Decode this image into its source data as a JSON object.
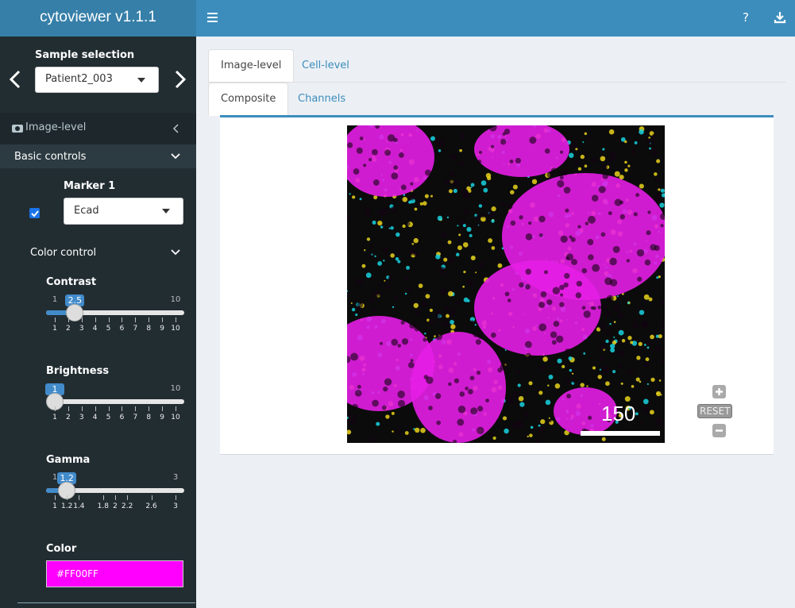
{
  "header": {
    "title": "cytoviewer v1.1.1",
    "help": "?"
  },
  "sidebar": {
    "sample_label": "Sample selection",
    "sample": "Patient2_003",
    "section": "Image-level",
    "basic_controls": "Basic controls",
    "marker_label": "Marker 1",
    "marker": "Ecad",
    "color_control": "Color control",
    "sliders": [
      {
        "label": "Contrast",
        "min": 1,
        "max": 10,
        "value": 2.5,
        "ticks": [
          1,
          2,
          3,
          4,
          5,
          6,
          7,
          8,
          9,
          10
        ]
      },
      {
        "label": "Brightness",
        "min": 1,
        "max": 10,
        "value": 1,
        "ticks": [
          1,
          2,
          3,
          4,
          5,
          6,
          7,
          8,
          9,
          10
        ]
      },
      {
        "label": "Gamma",
        "min": 1,
        "max": 3,
        "value": 1.2,
        "ticks": [
          1,
          1.2,
          1.4,
          1.8,
          2,
          2.2,
          2.6,
          3
        ]
      }
    ],
    "color_label": "Color",
    "color": "#FF00FF"
  },
  "main": {
    "tabs": [
      "Image-level",
      "Cell-level"
    ],
    "subtabs": [
      "Composite",
      "Channels"
    ],
    "scale_bar": 150,
    "reset": "RESET"
  }
}
